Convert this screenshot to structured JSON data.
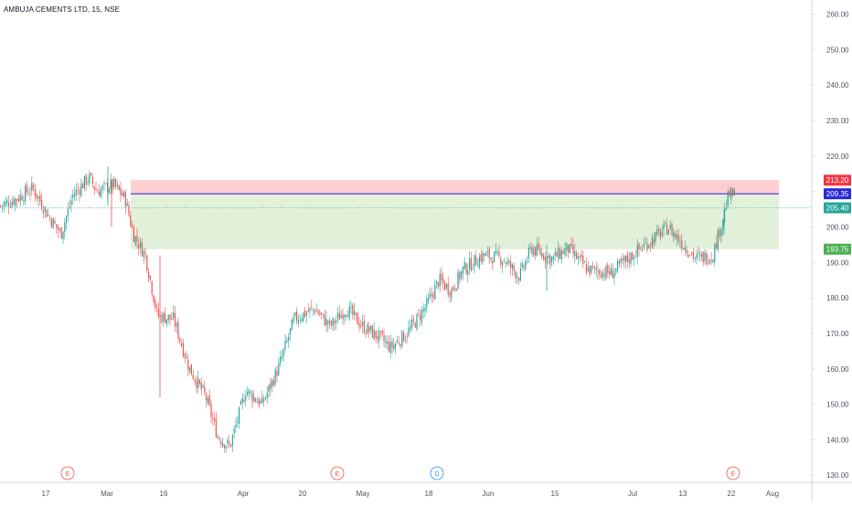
{
  "header": {
    "symbol": "AMBUJA CEMENTS LTD, 15, NSE"
  },
  "colors": {
    "up": "#26a69a",
    "down": "#ef5350",
    "stop_zone": "#ffcdd2",
    "profit_zone": "#e3f0d9",
    "target_line": "#1d1dd6",
    "last_price_line": "#26a69a",
    "entry_label": "#2a2ad8",
    "stop_label": "#f23645",
    "last_label": "#26a69a",
    "support_label": "#4caf50",
    "earnings_marker": "#ef5350",
    "dividend_marker": "#2196f3",
    "axis_text": "#50535e",
    "axis_line": "#d1d4dc"
  },
  "chart_data": {
    "type": "candlestick",
    "title": "AMBUJA CEMENTS LTD, 15, NSE",
    "ylim": [
      128,
      264
    ],
    "y_ticks": [
      130,
      140,
      150,
      160,
      170,
      180,
      190,
      200,
      210,
      220,
      230,
      240,
      250,
      260
    ],
    "y_tick_labels": [
      "130.00",
      "140.00",
      "150.00",
      "160.00",
      "170.00",
      "180.00",
      "190.00",
      "200.00",
      "210.00",
      "220.00",
      "230.00",
      "240.00",
      "250.00",
      "260.00"
    ],
    "x_tick_labels": [
      "17",
      "Mar",
      "16",
      "Apr",
      "20",
      "May",
      "18",
      "Jun",
      "15",
      "Jul",
      "13",
      "22",
      "Aug"
    ],
    "grid": false,
    "price_waypoints": [
      [
        0,
        206
      ],
      [
        0.02,
        208
      ],
      [
        0.04,
        211
      ],
      [
        0.06,
        203
      ],
      [
        0.075,
        198
      ],
      [
        0.09,
        209
      ],
      [
        0.11,
        214
      ],
      [
        0.12,
        210
      ],
      [
        0.14,
        212
      ],
      [
        0.155,
        208
      ],
      [
        0.165,
        198
      ],
      [
        0.18,
        192
      ],
      [
        0.195,
        175
      ],
      [
        0.215,
        174
      ],
      [
        0.235,
        160
      ],
      [
        0.255,
        152
      ],
      [
        0.27,
        141
      ],
      [
        0.285,
        138
      ],
      [
        0.305,
        154
      ],
      [
        0.325,
        150
      ],
      [
        0.345,
        160
      ],
      [
        0.365,
        174
      ],
      [
        0.39,
        177
      ],
      [
        0.41,
        172
      ],
      [
        0.43,
        177
      ],
      [
        0.45,
        172
      ],
      [
        0.47,
        169
      ],
      [
        0.485,
        166
      ],
      [
        0.505,
        170
      ],
      [
        0.53,
        178
      ],
      [
        0.545,
        185
      ],
      [
        0.56,
        182
      ],
      [
        0.575,
        188
      ],
      [
        0.6,
        192
      ],
      [
        0.625,
        191
      ],
      [
        0.645,
        186
      ],
      [
        0.66,
        194
      ],
      [
        0.685,
        191
      ],
      [
        0.705,
        194
      ],
      [
        0.73,
        188
      ],
      [
        0.76,
        187
      ],
      [
        0.79,
        193
      ],
      [
        0.83,
        200
      ],
      [
        0.845,
        196
      ],
      [
        0.865,
        191
      ],
      [
        0.885,
        192
      ],
      [
        0.895,
        200
      ],
      [
        0.905,
        209
      ],
      [
        0.915,
        209
      ]
    ],
    "series": [
      {
        "name": "entry",
        "value": 209.35,
        "label": "209.35"
      },
      {
        "name": "stop",
        "value": 213.2,
        "label": "213.20"
      },
      {
        "name": "last",
        "value": 205.4,
        "label": "205.40"
      },
      {
        "name": "support",
        "value": 193.75,
        "label": "193.75"
      }
    ],
    "position_zone": {
      "stop_top": 213.2,
      "entry": 209.35,
      "target": 193.75
    },
    "events": [
      {
        "type": "earnings",
        "label": "E",
        "at": "Feb 26"
      },
      {
        "type": "earnings",
        "label": "E",
        "at": "Apr 29"
      },
      {
        "type": "dividend",
        "label": "D",
        "at": "May 18"
      },
      {
        "type": "earnings",
        "label": "E",
        "at": "Jul 22"
      }
    ]
  }
}
